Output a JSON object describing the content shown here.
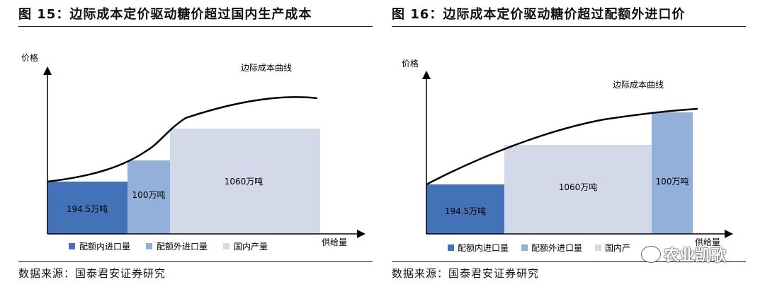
{
  "left": {
    "title": "图 15：边际成本定价驱动糖价超过国内生产成本",
    "source": "数据来源：国泰君安证券研究",
    "y_label": "价格",
    "x_label": "供给量",
    "curve_label": "边际成本曲线",
    "blocks": [
      {
        "label": "194.5万吨",
        "color": "#4472b9"
      },
      {
        "label": "100万吨",
        "color": "#93b0da"
      },
      {
        "label": "1060万吨",
        "color": "#d4d9ea"
      }
    ],
    "legend": [
      {
        "label": "配额内进口量",
        "color": "#4472b9"
      },
      {
        "label": "配额外进口量",
        "color": "#93b0da"
      },
      {
        "label": "国内产量",
        "color": "#d4d9ea"
      }
    ]
  },
  "right": {
    "title": "图 16：边际成本定价驱动糖价超过配额外进口价",
    "source": "数据来源：国泰君安证券研究",
    "y_label": "价格",
    "x_label": "供给量",
    "curve_label": "边际成本曲线",
    "blocks": [
      {
        "label": "194.5万吨",
        "color": "#4472b9"
      },
      {
        "label": "1060万吨",
        "color": "#d4d9ea"
      },
      {
        "label": "100万吨",
        "color": "#93b0da"
      }
    ],
    "legend": [
      {
        "label": "配额内进口量",
        "color": "#4472b9"
      },
      {
        "label": "配额外进口量",
        "color": "#93b0da"
      },
      {
        "label": "国内产",
        "color": "#d4d9ea"
      }
    ]
  },
  "watermark": "农业凯歌"
}
